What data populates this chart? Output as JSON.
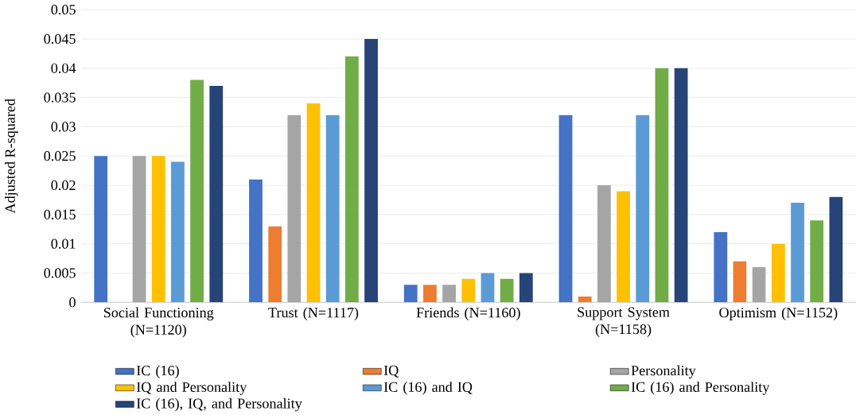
{
  "chart_data": {
    "type": "bar",
    "ylabel": "Adjusted R-squared",
    "categories": [
      "Social Functioning (N=1120)",
      "Trust (N=1117)",
      "Friends (N=1160)",
      "Support System (N=1158)",
      "Optimism (N=1152)"
    ],
    "series": [
      {
        "name": "IC (16)",
        "color": "#4472c4",
        "values": [
          0.025,
          0.021,
          0.003,
          0.032,
          0.012
        ]
      },
      {
        "name": "IQ",
        "color": "#ed7d31",
        "values": [
          null,
          0.013,
          0.003,
          0.001,
          0.007
        ]
      },
      {
        "name": "Personality",
        "color": "#a5a5a5",
        "values": [
          0.025,
          0.032,
          0.003,
          0.02,
          0.006
        ]
      },
      {
        "name": "IQ and Personality",
        "color": "#ffc000",
        "values": [
          0.025,
          0.034,
          0.004,
          0.019,
          0.01
        ]
      },
      {
        "name": "IC (16) and IQ",
        "color": "#5b9bd5",
        "values": [
          0.024,
          0.032,
          0.005,
          0.032,
          0.017
        ]
      },
      {
        "name": "IC (16) and Personality",
        "color": "#70ad47",
        "values": [
          0.038,
          0.042,
          0.004,
          0.04,
          0.014
        ]
      },
      {
        "name": "IC (16), IQ, and Personality",
        "color": "#264478",
        "values": [
          0.037,
          0.045,
          0.005,
          0.04,
          0.018
        ]
      }
    ],
    "ylim": [
      0,
      0.05
    ],
    "yticks": [
      0,
      0.005,
      0.01,
      0.015,
      0.02,
      0.025,
      0.03,
      0.035,
      0.04,
      0.045,
      0.05
    ],
    "grid": "y",
    "legend": "bottom"
  }
}
